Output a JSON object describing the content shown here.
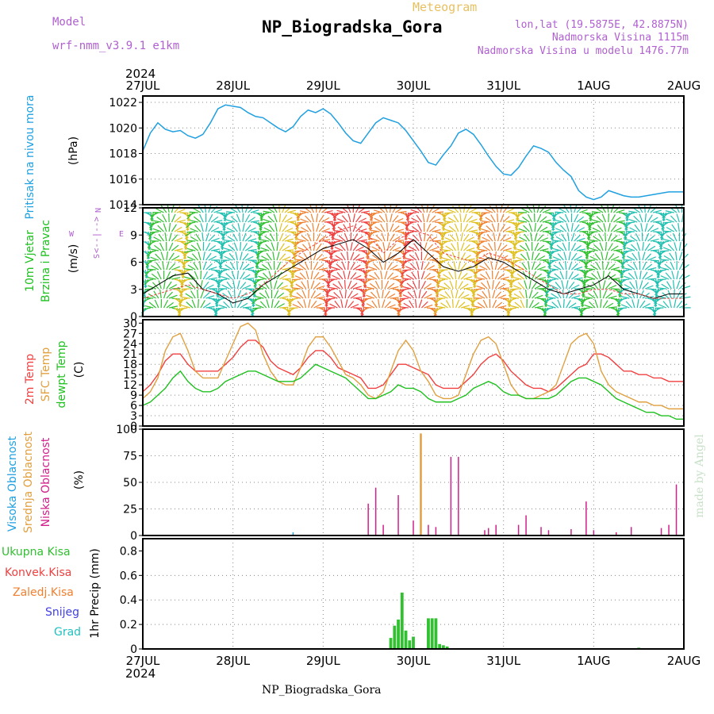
{
  "header": {
    "model_label": "Model",
    "model_value": "wrf-nmm_v3.9.1  e1km",
    "meteogram_label": "Meteogram",
    "station": "NP_Biogradska_Gora",
    "lonlat": "lon,lat (19.5875E, 42.8875N)",
    "altitude": "Nadmorska Visina 1115m",
    "model_altitude": "Nadmorska Visina u modelu 1476.77m",
    "year": "2024"
  },
  "footer": {
    "station": "NP_Biogradska_Gora",
    "watermark": "made by Angel"
  },
  "colors": {
    "pressure": "#20a0e0",
    "wind_label": "#20c020",
    "wind_dir": "#b060d0",
    "temp2m": "#f04040",
    "sfc": "#e0a040",
    "dewpt": "#20c020",
    "high_cloud": "#20a0e0",
    "mid_cloud": "#e0a040",
    "low_cloud": "#d0208a",
    "precip": "#30c030",
    "convective": "#f04040",
    "freezing": "#f08030",
    "snow": "#4040e0",
    "hail": "#20c0c0"
  },
  "chart_data": [
    {
      "type": "line",
      "name": "pressure",
      "ylabel": [
        "Pritisak na nivou mora",
        "(hPa)"
      ],
      "ylim": [
        1014,
        1022.5
      ],
      "yticks": [
        1014,
        1016,
        1018,
        1020,
        1022
      ],
      "x": [
        0,
        2,
        4,
        6,
        8,
        10,
        12,
        14,
        16,
        18,
        20,
        22,
        24,
        26,
        28,
        30,
        32,
        34,
        36,
        38,
        40,
        42,
        44,
        46,
        48,
        50,
        52,
        54,
        56,
        58,
        60,
        62,
        64,
        66,
        68,
        70,
        72,
        74,
        76,
        78,
        80,
        82,
        84,
        86,
        88,
        90,
        92,
        94,
        96,
        98,
        100,
        102,
        104,
        106,
        108,
        110,
        112,
        114,
        116,
        118,
        120,
        122,
        124,
        126,
        128,
        130,
        132,
        134,
        136,
        138,
        140,
        142,
        144
      ],
      "values": [
        1018.2,
        1019.6,
        1020.4,
        1019.9,
        1019.7,
        1019.8,
        1019.4,
        1019.2,
        1019.5,
        1020.4,
        1021.5,
        1021.8,
        1021.7,
        1021.6,
        1021.2,
        1020.9,
        1020.8,
        1020.4,
        1020.0,
        1019.7,
        1020.1,
        1020.9,
        1021.4,
        1021.2,
        1021.5,
        1021.1,
        1020.4,
        1019.6,
        1019.0,
        1018.8,
        1019.6,
        1020.4,
        1020.8,
        1020.6,
        1020.4,
        1019.8,
        1019.0,
        1018.2,
        1017.3,
        1017.1,
        1017.9,
        1018.6,
        1019.6,
        1019.9,
        1019.5,
        1018.7,
        1017.8,
        1017.0,
        1016.4,
        1016.3,
        1016.9,
        1017.8,
        1018.6,
        1018.4,
        1018.1,
        1017.3,
        1016.7,
        1016.2,
        1015.1,
        1014.6,
        1014.4,
        1014.6,
        1015.1,
        1014.9,
        1014.7,
        1014.6,
        1014.6,
        1014.7,
        1014.8,
        1014.9,
        1015.0,
        1015.0,
        1015.0
      ]
    },
    {
      "type": "line",
      "name": "wind",
      "ylabel": [
        "10m Vjetar",
        "Brzina i Pravac",
        "(m/s)"
      ],
      "direction_key": [
        "W",
        "<--|-->",
        "E",
        "N",
        "S"
      ],
      "ylim": [
        0,
        12
      ],
      "yticks": [
        0,
        3,
        6,
        9,
        12
      ],
      "x": [
        0,
        4,
        8,
        12,
        16,
        20,
        24,
        28,
        32,
        36,
        40,
        44,
        48,
        52,
        56,
        60,
        64,
        68,
        72,
        76,
        80,
        84,
        88,
        92,
        96,
        100,
        104,
        108,
        112,
        116,
        120,
        124,
        128,
        132,
        136,
        140,
        144
      ],
      "speed": [
        2.5,
        3.5,
        4.5,
        4.8,
        3.0,
        2.5,
        1.5,
        2.0,
        3.5,
        4.5,
        5.5,
        6.5,
        7.5,
        8.0,
        8.5,
        7.5,
        6.0,
        7.0,
        8.5,
        7.0,
        5.5,
        5.0,
        5.5,
        6.5,
        6.0,
        5.0,
        4.0,
        3.0,
        2.5,
        3.0,
        3.5,
        4.5,
        3.0,
        2.5,
        2.0,
        2.5,
        2.5
      ],
      "gust": [
        2.0,
        2.5,
        3.0,
        3.5,
        3.0,
        2.5,
        2.0,
        2.5,
        3.5,
        5.0,
        6.5,
        7.5,
        8.5,
        9.5,
        10.0,
        9.0,
        7.0,
        8.5,
        9.5,
        9.0,
        7.0,
        6.5,
        6.0,
        7.0,
        6.5,
        5.5,
        4.5,
        3.5,
        2.5,
        2.5,
        3.0,
        3.0,
        2.5,
        2.5,
        2.0,
        2.0,
        2.0
      ]
    },
    {
      "type": "line",
      "name": "temperature",
      "ylabel": [
        "2m Temp",
        "SFC Temp",
        "dewpt Temp",
        "(C)"
      ],
      "ylim": [
        0,
        31
      ],
      "yticks": [
        0,
        3,
        6,
        9,
        12,
        15,
        18,
        21,
        24,
        27,
        30
      ],
      "x": [
        0,
        2,
        4,
        6,
        8,
        10,
        12,
        14,
        16,
        18,
        20,
        22,
        24,
        26,
        28,
        30,
        32,
        34,
        36,
        38,
        40,
        42,
        44,
        46,
        48,
        50,
        52,
        54,
        56,
        58,
        60,
        62,
        64,
        66,
        68,
        70,
        72,
        74,
        76,
        78,
        80,
        82,
        84,
        86,
        88,
        90,
        92,
        94,
        96,
        98,
        100,
        102,
        104,
        106,
        108,
        110,
        112,
        114,
        116,
        118,
        120,
        122,
        124,
        126,
        128,
        130,
        132,
        134,
        136,
        138,
        140,
        142,
        144
      ],
      "series": [
        {
          "name": "2m Temp",
          "values": [
            10,
            12,
            15,
            19,
            21,
            21,
            18,
            16,
            16,
            16,
            16,
            18,
            20,
            23,
            25,
            25,
            23,
            19,
            17,
            16,
            15,
            17,
            20,
            22,
            22,
            20,
            17,
            16,
            15,
            14,
            11,
            11,
            12,
            15,
            18,
            18,
            17,
            16,
            15,
            12,
            11,
            11,
            11,
            13,
            15,
            18,
            20,
            21,
            19,
            16,
            14,
            12,
            11,
            11,
            10,
            11,
            13,
            15,
            17,
            18,
            21,
            21,
            20,
            18,
            16,
            16,
            15,
            15,
            14,
            14,
            13,
            13,
            13
          ]
        },
        {
          "name": "SFC Temp",
          "values": [
            8,
            10,
            14,
            22,
            26,
            27,
            22,
            16,
            14,
            14,
            14,
            19,
            24,
            29,
            30,
            28,
            21,
            16,
            13,
            12,
            12,
            17,
            23,
            26,
            26,
            23,
            19,
            15,
            14,
            12,
            9,
            8,
            10,
            16,
            22,
            25,
            22,
            16,
            13,
            9,
            8,
            8,
            9,
            15,
            21,
            25,
            26,
            24,
            18,
            12,
            9,
            8,
            8,
            9,
            10,
            12,
            18,
            24,
            26,
            27,
            24,
            16,
            12,
            10,
            9,
            8,
            7,
            7,
            6,
            6,
            5,
            5,
            5
          ]
        },
        {
          "name": "dewpt Temp",
          "values": [
            6,
            7,
            9,
            11,
            14,
            16,
            13,
            11,
            10,
            10,
            11,
            13,
            14,
            15,
            16,
            16,
            15,
            14,
            13,
            13,
            13,
            14,
            16,
            18,
            17,
            16,
            15,
            14,
            12,
            10,
            8,
            8,
            9,
            10,
            12,
            11,
            11,
            10,
            8,
            7,
            7,
            7,
            8,
            9,
            11,
            12,
            13,
            12,
            10,
            9,
            9,
            8,
            8,
            8,
            8,
            9,
            11,
            13,
            14,
            14,
            13,
            12,
            10,
            8,
            7,
            6,
            5,
            4,
            4,
            3,
            3,
            2,
            2
          ]
        }
      ]
    },
    {
      "type": "bar",
      "name": "cloud",
      "ylabel": [
        "Visoka Oblacnost",
        "Srednja Oblacnost",
        "Niska Oblacnost",
        "(%)"
      ],
      "ylim": [
        0,
        100
      ],
      "yticks": [
        0,
        25,
        50,
        75,
        100
      ],
      "low": {
        "x": [
          60,
          62,
          64,
          68,
          72,
          76,
          78,
          82,
          84,
          91,
          92,
          94,
          100,
          102,
          106,
          108,
          114,
          118,
          120,
          126,
          130,
          138,
          140,
          142,
          144
        ],
        "values": [
          30,
          45,
          10,
          38,
          14,
          10,
          8,
          74,
          74,
          5,
          7,
          10,
          10,
          19,
          8,
          5,
          6,
          32,
          5,
          3,
          8,
          7,
          10,
          48,
          0
        ]
      },
      "mid": {
        "x": [
          74
        ],
        "values": [
          96
        ]
      },
      "high": {
        "x": [
          40
        ],
        "values": [
          3
        ]
      }
    },
    {
      "type": "bar",
      "name": "precip",
      "ylabel": [
        "Ukupna Kisa",
        "Konvek.Kisa",
        "Zaledj.Kisa",
        "Snijeg",
        "Grad",
        "1hr Precip (mm)"
      ],
      "ylim": [
        0,
        0.9
      ],
      "yticks": [
        0,
        0.2,
        0.4,
        0.6,
        0.8
      ],
      "x": [
        66,
        67,
        68,
        69,
        70,
        71,
        72,
        76,
        77,
        78,
        79,
        80,
        81,
        132
      ],
      "values": [
        0.09,
        0.19,
        0.24,
        0.46,
        0.15,
        0.07,
        0.1,
        0.25,
        0.25,
        0.25,
        0.04,
        0.03,
        0.02,
        0.01
      ]
    }
  ],
  "xaxis": {
    "labels": [
      "27JUL",
      "28JUL",
      "29JUL",
      "30JUL",
      "31JUL",
      "1AUG",
      "2AUG"
    ],
    "hours": [
      0,
      24,
      48,
      72,
      96,
      120,
      144
    ]
  }
}
